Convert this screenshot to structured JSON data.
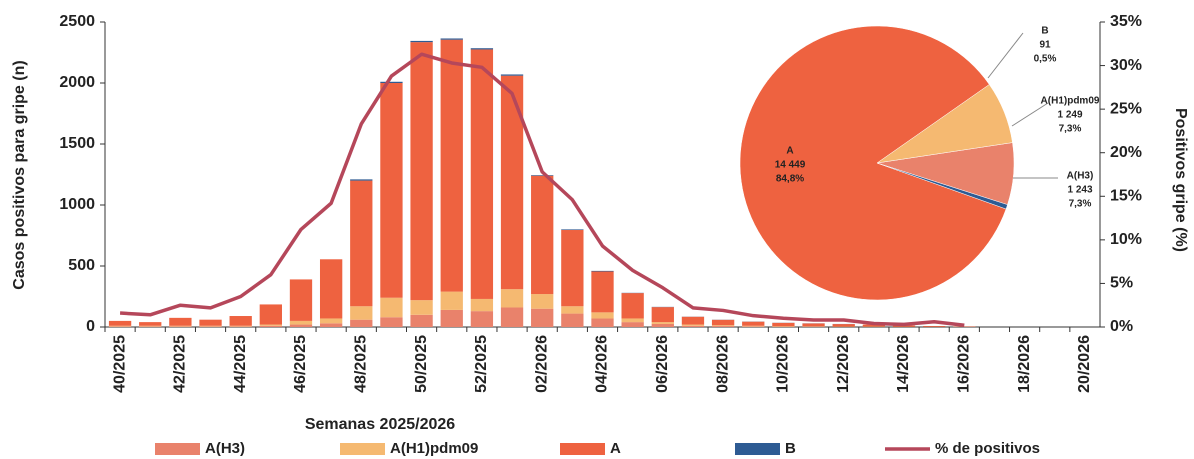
{
  "chart_data": [
    {
      "type": "bar",
      "stacked": true,
      "x_label": "Semanas 2025/2026",
      "y_label": "Casos positivos para gripe (n)",
      "y2_label": "Positivos gripe (%)",
      "categories": [
        "40/2025",
        null,
        "42/2025",
        null,
        "44/2025",
        null,
        "46/2025",
        null,
        "48/2025",
        null,
        "50/2025",
        null,
        "52/2025",
        null,
        "02/2026",
        null,
        "04/2026",
        null,
        "06/2026",
        null,
        "08/2026",
        null,
        "10/2026",
        null,
        "12/2026",
        null,
        "14/2026",
        null,
        "16/2026",
        null,
        "18/2026",
        null,
        "20/2026"
      ],
      "series": [
        {
          "name": "A(H3)",
          "type": "bar",
          "color": "#e9826b",
          "values": [
            5,
            5,
            5,
            5,
            5,
            10,
            20,
            30,
            60,
            80,
            100,
            140,
            130,
            160,
            150,
            110,
            70,
            40,
            25,
            10,
            8,
            5,
            4,
            3,
            2,
            2,
            1,
            1,
            1,
            null,
            null,
            null,
            null
          ]
        },
        {
          "name": "A(H1)pdm09",
          "type": "bar",
          "color": "#f5b971",
          "values": [
            5,
            5,
            5,
            5,
            5,
            10,
            30,
            40,
            110,
            160,
            120,
            150,
            100,
            150,
            120,
            60,
            50,
            30,
            15,
            10,
            7,
            5,
            4,
            3,
            2,
            2,
            1,
            1,
            1,
            null,
            null,
            null,
            null
          ]
        },
        {
          "name": "A",
          "type": "bar",
          "color": "#ee6240",
          "values": [
            40,
            30,
            65,
            50,
            80,
            165,
            340,
            485,
            1030,
            1760,
            2115,
            2065,
            2045,
            1750,
            970,
            625,
            335,
            208,
            123,
            64,
            44,
            34,
            26,
            23,
            20,
            16,
            10,
            6,
            3,
            null,
            null,
            null,
            null
          ]
        },
        {
          "name": "B",
          "type": "bar",
          "color": "#2e5b93",
          "values": [
            0,
            0,
            0,
            0,
            0,
            0,
            0,
            0,
            10,
            10,
            10,
            10,
            10,
            10,
            5,
            5,
            5,
            2,
            2,
            1,
            1,
            1,
            1,
            1,
            1,
            0,
            0,
            0,
            0,
            null,
            null,
            null,
            null
          ]
        },
        {
          "name": "% de positivos",
          "type": "line",
          "axis": "y2",
          "color": "#b5475a",
          "values": [
            1.6,
            1.4,
            2.5,
            2.2,
            3.5,
            6.0,
            11.2,
            14.2,
            23.3,
            28.8,
            31.3,
            30.3,
            29.8,
            26.8,
            17.8,
            14.6,
            9.3,
            6.5,
            4.5,
            2.2,
            1.9,
            1.3,
            1.0,
            0.8,
            0.8,
            0.4,
            0.3,
            0.6,
            0.2,
            null,
            null,
            null,
            null
          ]
        }
      ],
      "ylim": [
        0,
        2500
      ],
      "yticks": [
        0,
        500,
        1000,
        1500,
        2000,
        2500
      ],
      "y2lim": [
        0,
        35
      ],
      "y2ticks": [
        {
          "value": 0,
          "label": "0%"
        },
        {
          "value": 5,
          "label": "5%"
        },
        {
          "value": 10,
          "label": "10%"
        },
        {
          "value": 15,
          "label": "15%"
        },
        {
          "value": 20,
          "label": "20%"
        },
        {
          "value": 25,
          "label": "25%"
        },
        {
          "value": 30,
          "label": "30%"
        },
        {
          "value": 35,
          "label": "35%"
        }
      ],
      "legend": "bottom"
    },
    {
      "type": "pie",
      "categories": [
        "A(H3)",
        "A(H1)pdm09",
        "A",
        "B"
      ],
      "values": [
        1243,
        1249,
        14449,
        91
      ],
      "value_labels": [
        "1 243",
        "1 249",
        "14 449",
        "91"
      ],
      "percents": [
        7.3,
        7.3,
        84.8,
        0.5
      ],
      "percent_labels": [
        "7,3%",
        "7,3%",
        "84,8%",
        "0,5%"
      ],
      "colors": [
        "#e9826b",
        "#f5b971",
        "#ee6240",
        "#2e5b93"
      ]
    }
  ]
}
